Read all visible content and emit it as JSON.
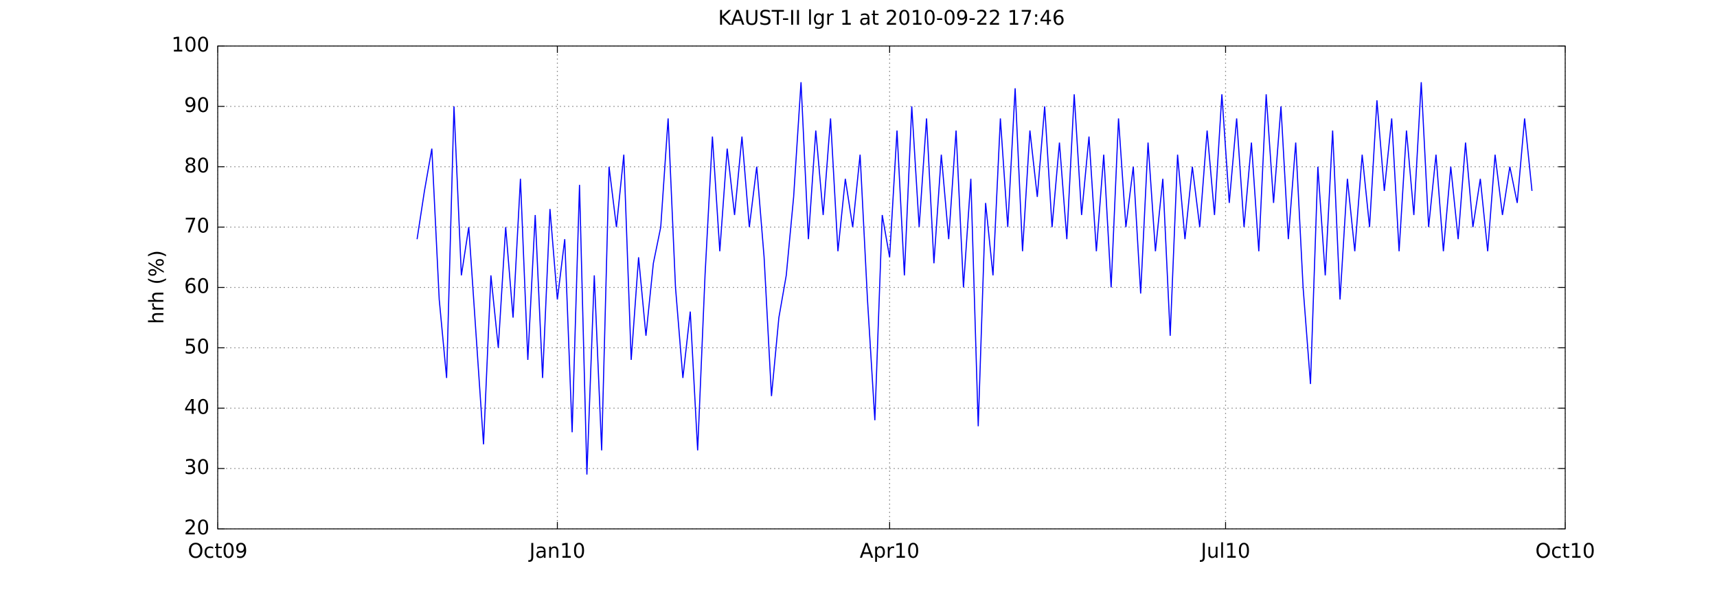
{
  "chart_data": {
    "type": "line",
    "title": "KAUST-II lgr 1 at 2010-09-22 17:46",
    "y_label": "hrh (%)",
    "xlim": [
      0,
      365
    ],
    "xticks": [
      {
        "value": 0,
        "label": "Oct09"
      },
      {
        "value": 92,
        "label": "Jan10"
      },
      {
        "value": 182,
        "label": "Apr10"
      },
      {
        "value": 273,
        "label": "Jul10"
      },
      {
        "value": 365,
        "label": "Oct10"
      }
    ],
    "ylim": [
      20,
      100
    ],
    "yticks": [
      20,
      30,
      40,
      50,
      60,
      70,
      80,
      90,
      100
    ],
    "grid": true,
    "x": [
      54,
      56,
      58,
      60,
      62,
      64,
      66,
      68,
      70,
      72,
      74,
      76,
      78,
      80,
      82,
      84,
      86,
      88,
      90,
      92,
      94,
      96,
      98,
      100,
      102,
      104,
      106,
      108,
      110,
      112,
      114,
      116,
      118,
      120,
      122,
      124,
      126,
      128,
      130,
      132,
      134,
      136,
      138,
      140,
      142,
      144,
      146,
      148,
      150,
      152,
      154,
      156,
      158,
      160,
      162,
      164,
      166,
      168,
      170,
      172,
      174,
      176,
      178,
      180,
      182,
      184,
      186,
      188,
      190,
      192,
      194,
      196,
      198,
      200,
      202,
      204,
      206,
      208,
      210,
      212,
      214,
      216,
      218,
      220,
      222,
      224,
      226,
      228,
      230,
      232,
      234,
      236,
      238,
      240,
      242,
      244,
      246,
      248,
      250,
      252,
      254,
      256,
      258,
      260,
      262,
      264,
      266,
      268,
      270,
      272,
      274,
      276,
      278,
      280,
      282,
      284,
      286,
      288,
      290,
      292,
      294,
      296,
      298,
      300,
      302,
      304,
      306,
      308,
      310,
      312,
      314,
      316,
      318,
      320,
      322,
      324,
      326,
      328,
      330,
      332,
      334,
      336,
      338,
      340,
      342,
      344,
      346,
      348,
      350,
      352,
      354,
      356
    ],
    "series": [
      {
        "color": "#0000ff",
        "values": [
          68,
          76,
          83,
          58,
          45,
          90,
          62,
          70,
          52,
          34,
          62,
          50,
          70,
          55,
          78,
          48,
          72,
          45,
          73,
          58,
          68,
          36,
          77,
          29,
          62,
          33,
          80,
          70,
          82,
          48,
          65,
          52,
          64,
          70,
          88,
          60,
          45,
          56,
          33,
          62,
          85,
          66,
          83,
          72,
          85,
          70,
          80,
          65,
          42,
          55,
          62,
          75,
          94,
          68,
          86,
          72,
          88,
          66,
          78,
          70,
          82,
          58,
          38,
          72,
          65,
          86,
          62,
          90,
          70,
          88,
          64,
          82,
          68,
          86,
          60,
          78,
          37,
          74,
          62,
          88,
          70,
          93,
          66,
          86,
          75,
          90,
          70,
          84,
          68,
          92,
          72,
          85,
          66,
          82,
          60,
          88,
          70,
          80,
          59,
          84,
          66,
          78,
          52,
          82,
          68,
          80,
          70,
          86,
          72,
          92,
          74,
          88,
          70,
          84,
          66,
          92,
          74,
          90,
          68,
          84,
          60,
          44,
          80,
          62,
          86,
          58,
          78,
          66,
          82,
          70,
          91,
          76,
          88,
          66,
          86,
          72,
          94,
          70,
          82,
          66,
          80,
          68,
          84,
          70,
          78,
          66,
          82,
          72,
          80,
          74,
          88,
          76
        ]
      }
    ]
  }
}
